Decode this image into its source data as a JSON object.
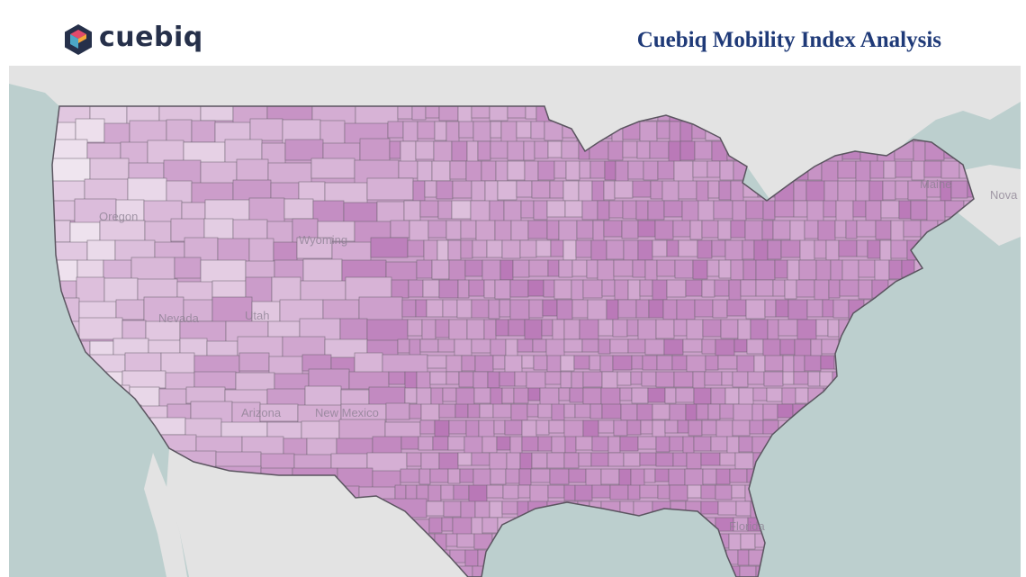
{
  "header": {
    "logo_text": "cuebiq",
    "title": "Cuebiq Mobility Index Analysis"
  },
  "map": {
    "type": "choropleth",
    "region": "Contiguous United States, county level",
    "colors": {
      "water": "#bccfce",
      "land_outside": "#e3e3e3",
      "county_lightest": "#f0e6f0",
      "county_darkest": "#b977b7",
      "county_border": "#6e6470"
    },
    "labels": [
      {
        "id": "wyoming",
        "text": "Wyoming"
      },
      {
        "id": "nevada",
        "text": "Nevada"
      },
      {
        "id": "arizona",
        "text": "Arizona"
      },
      {
        "id": "new-mexico",
        "text": "New Mexico"
      },
      {
        "id": "oregon",
        "text": "Oregon"
      },
      {
        "id": "utah",
        "text": "Utah"
      },
      {
        "id": "maine",
        "text": "Maine"
      },
      {
        "id": "florida",
        "text": "Florida"
      },
      {
        "id": "nova",
        "text": "Nova"
      }
    ]
  }
}
